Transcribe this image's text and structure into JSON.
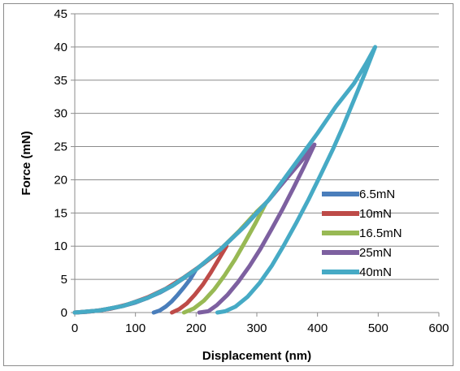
{
  "chart_data": {
    "type": "line",
    "title": "",
    "xlabel": "Displacement (nm)",
    "ylabel": "Force (mN)",
    "xlim": [
      0,
      600
    ],
    "ylim": [
      0,
      45
    ],
    "xticks": [
      0,
      100,
      200,
      300,
      400,
      500,
      600
    ],
    "yticks": [
      0,
      5,
      10,
      15,
      20,
      25,
      30,
      35,
      40,
      45
    ],
    "grid": "horizontal",
    "legend_position": "right",
    "series": [
      {
        "name": "6.5mN",
        "color": "#4a7ebb",
        "loading": [
          [
            0,
            0
          ],
          [
            20,
            0.1
          ],
          [
            40,
            0.3
          ],
          [
            60,
            0.6
          ],
          [
            80,
            1.0
          ],
          [
            100,
            1.5
          ],
          [
            120,
            2.2
          ],
          [
            140,
            3.0
          ],
          [
            160,
            4.0
          ],
          [
            180,
            5.2
          ],
          [
            200,
            6.5
          ]
        ],
        "unloading": [
          [
            200,
            6.5
          ],
          [
            190,
            5.0
          ],
          [
            180,
            3.8
          ],
          [
            170,
            2.7
          ],
          [
            160,
            1.7
          ],
          [
            150,
            0.9
          ],
          [
            140,
            0.3
          ],
          [
            130,
            0
          ]
        ]
      },
      {
        "name": "10mN",
        "color": "#be4b48",
        "loading": [
          [
            0,
            0
          ],
          [
            30,
            0.2
          ],
          [
            60,
            0.6
          ],
          [
            90,
            1.3
          ],
          [
            120,
            2.3
          ],
          [
            150,
            3.6
          ],
          [
            180,
            5.3
          ],
          [
            210,
            7.2
          ],
          [
            230,
            8.6
          ],
          [
            250,
            10
          ]
        ],
        "unloading": [
          [
            250,
            10
          ],
          [
            237,
            8
          ],
          [
            224,
            6
          ],
          [
            211,
            4.2
          ],
          [
            198,
            2.7
          ],
          [
            185,
            1.4
          ],
          [
            172,
            0.5
          ],
          [
            160,
            0
          ]
        ]
      },
      {
        "name": "16.5mN",
        "color": "#98b954",
        "loading": [
          [
            0,
            0
          ],
          [
            40,
            0.3
          ],
          [
            80,
            1.0
          ],
          [
            120,
            2.2
          ],
          [
            160,
            4.0
          ],
          [
            200,
            6.5
          ],
          [
            240,
            9.5
          ],
          [
            270,
            12.2
          ],
          [
            300,
            15.2
          ],
          [
            315,
            16.5
          ]
        ],
        "unloading": [
          [
            315,
            16.5
          ],
          [
            298,
            13.5
          ],
          [
            281,
            10.7
          ],
          [
            264,
            8.0
          ],
          [
            247,
            5.6
          ],
          [
            230,
            3.5
          ],
          [
            213,
            1.8
          ],
          [
            196,
            0.6
          ],
          [
            180,
            0
          ]
        ]
      },
      {
        "name": "25mN",
        "color": "#7d60a0",
        "loading": [
          [
            0,
            0
          ],
          [
            40,
            0.3
          ],
          [
            80,
            1.0
          ],
          [
            120,
            2.2
          ],
          [
            160,
            4.0
          ],
          [
            200,
            6.5
          ],
          [
            240,
            9.5
          ],
          [
            280,
            13.0
          ],
          [
            320,
            17.0
          ],
          [
            350,
            20.3
          ],
          [
            375,
            23.0
          ],
          [
            395,
            25.3
          ]
        ],
        "unloading": [
          [
            395,
            25.3
          ],
          [
            378,
            22
          ],
          [
            360,
            18.7
          ],
          [
            342,
            15.5
          ],
          [
            324,
            12.5
          ],
          [
            306,
            9.6
          ],
          [
            288,
            7.0
          ],
          [
            270,
            4.7
          ],
          [
            252,
            2.7
          ],
          [
            234,
            1.1
          ],
          [
            220,
            0.2
          ],
          [
            205,
            0
          ]
        ]
      },
      {
        "name": "40mN",
        "color": "#46aac5",
        "loading": [
          [
            0,
            0
          ],
          [
            40,
            0.3
          ],
          [
            80,
            1.0
          ],
          [
            120,
            2.2
          ],
          [
            160,
            4.0
          ],
          [
            200,
            6.5
          ],
          [
            240,
            9.5
          ],
          [
            280,
            13.0
          ],
          [
            320,
            17.0
          ],
          [
            360,
            22.0
          ],
          [
            400,
            27.0
          ],
          [
            430,
            31.0
          ],
          [
            460,
            34.5
          ],
          [
            480,
            37.5
          ],
          [
            495,
            40
          ]
        ],
        "unloading": [
          [
            495,
            40
          ],
          [
            478,
            36
          ],
          [
            460,
            32
          ],
          [
            442,
            28
          ],
          [
            425,
            24.5
          ],
          [
            405,
            20.7
          ],
          [
            385,
            17.0
          ],
          [
            365,
            13.5
          ],
          [
            345,
            10.2
          ],
          [
            325,
            7.1
          ],
          [
            305,
            4.5
          ],
          [
            285,
            2.4
          ],
          [
            265,
            0.9
          ],
          [
            248,
            0.2
          ],
          [
            235,
            0
          ]
        ]
      }
    ]
  }
}
